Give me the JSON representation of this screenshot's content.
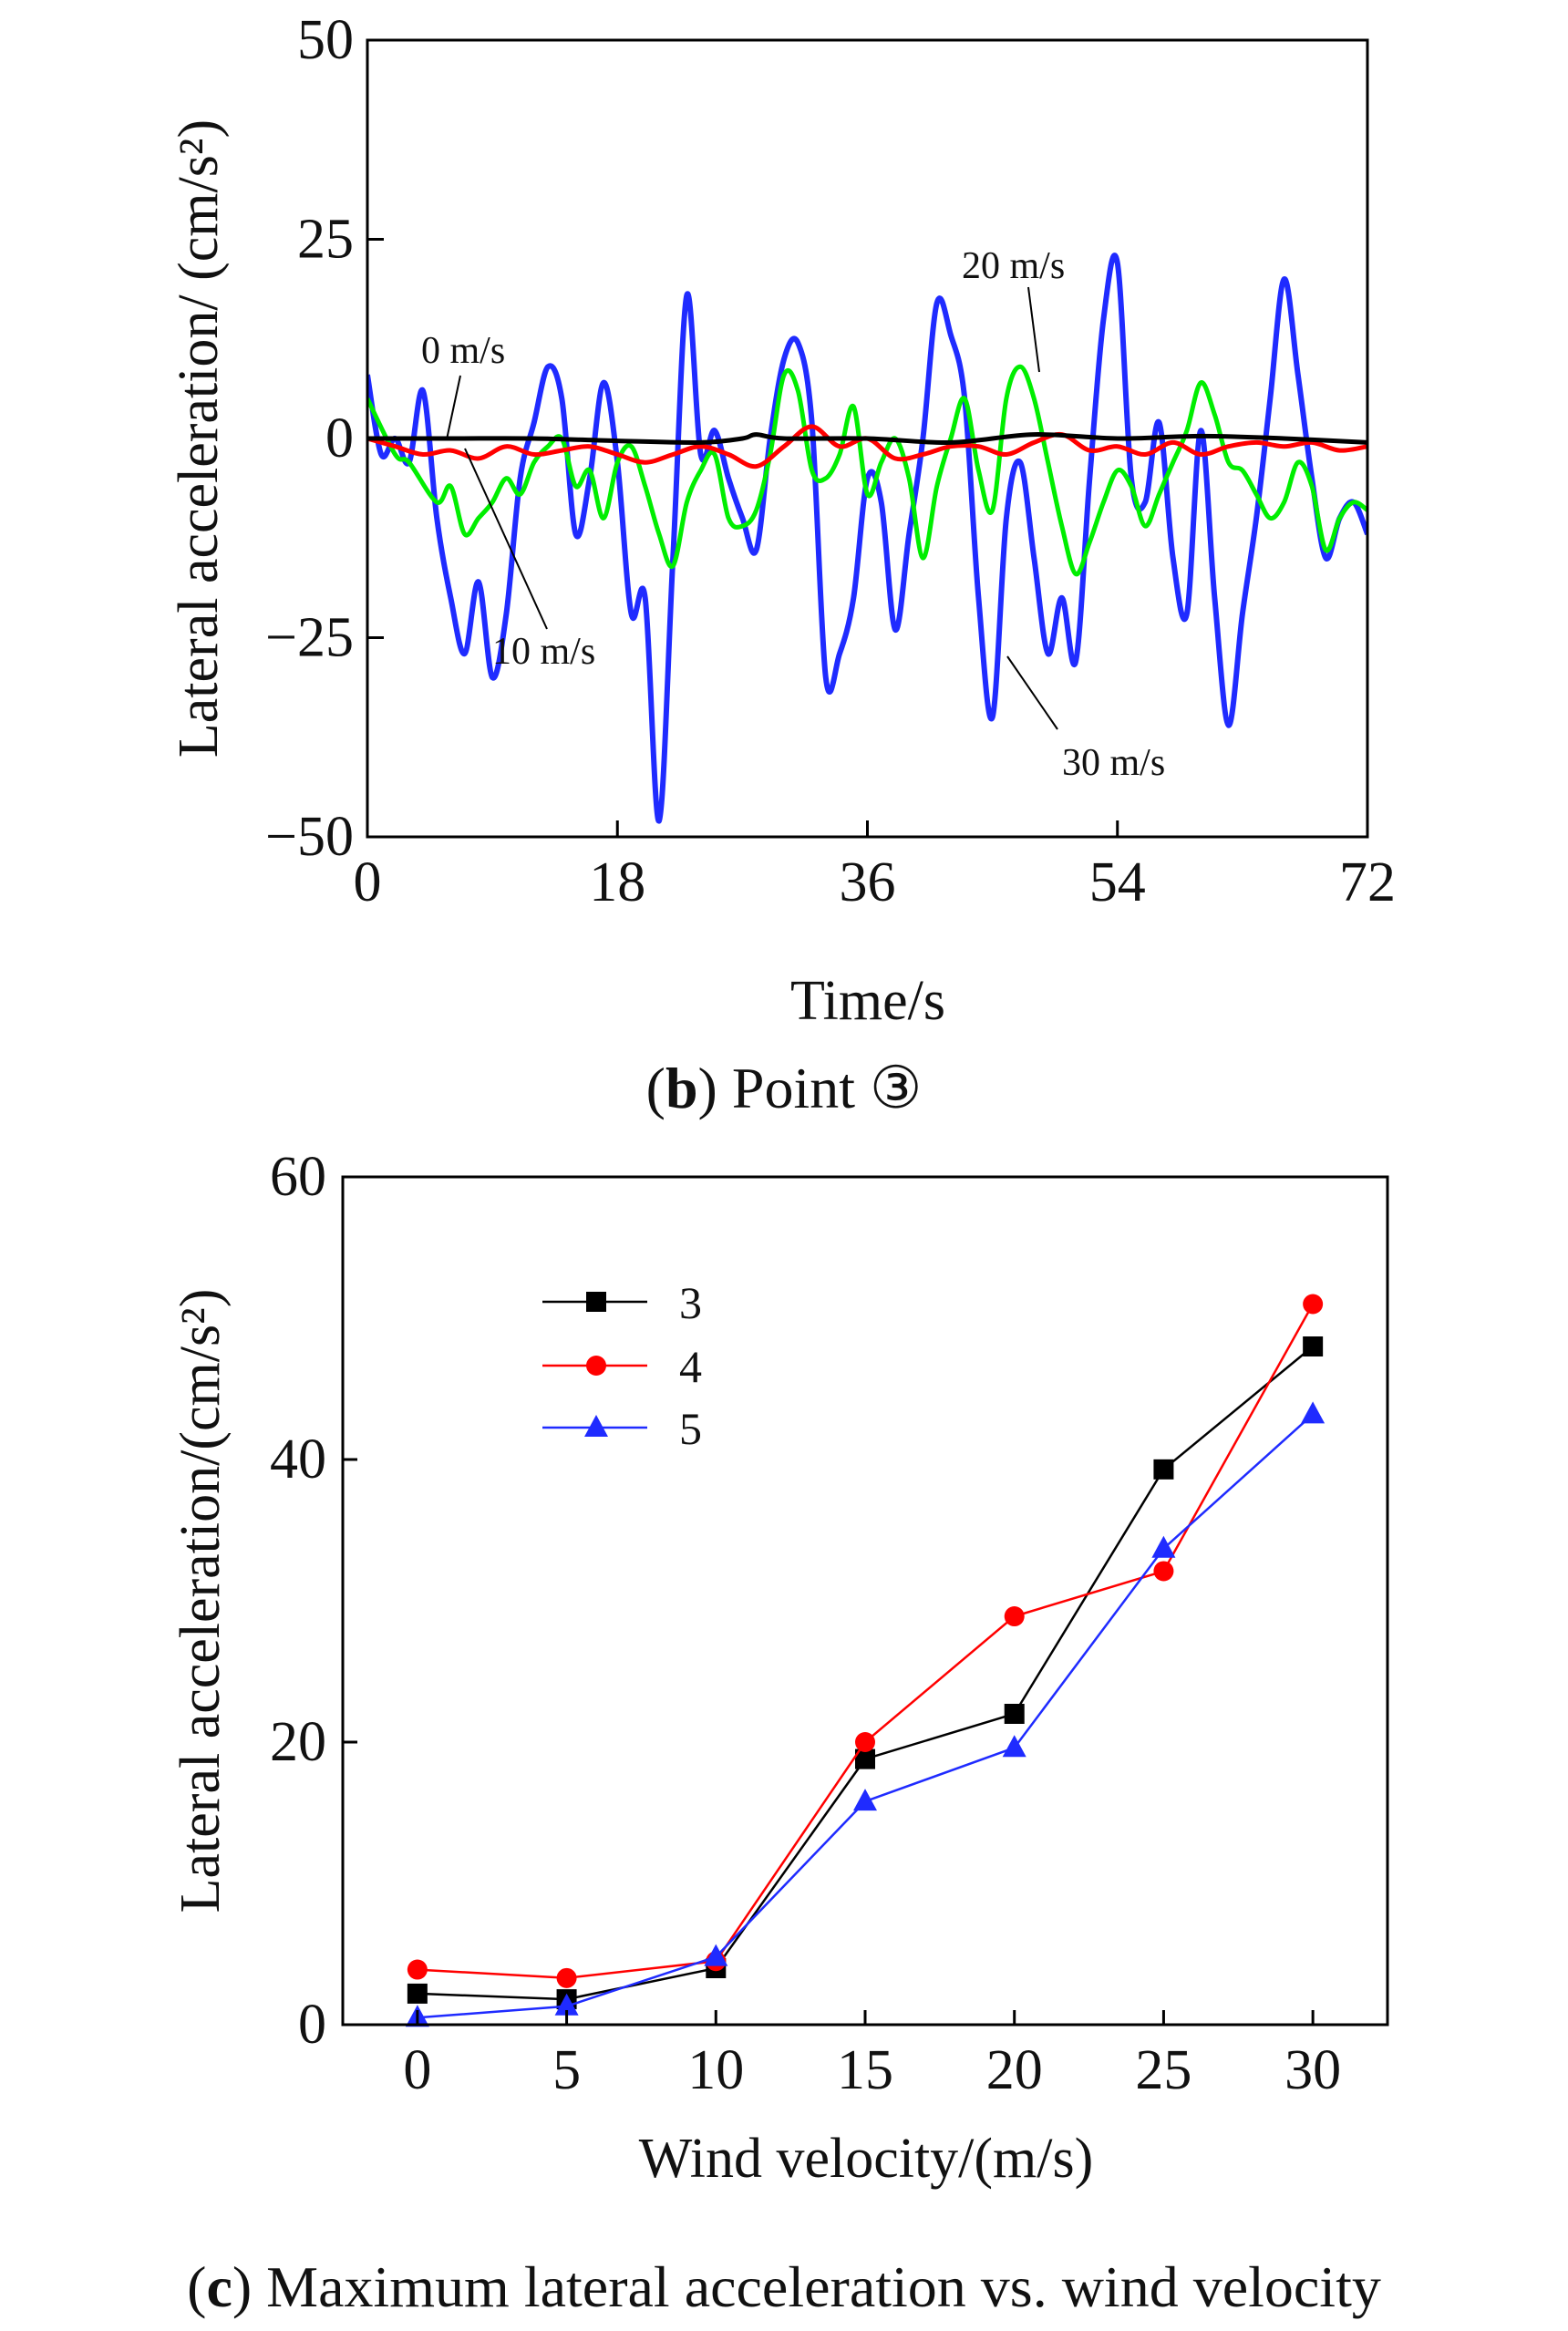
{
  "chart_data": [
    {
      "type": "line",
      "panel": "b",
      "caption_letter": "b",
      "caption_text": "Point ③",
      "xlabel": "Time/s",
      "ylabel": "Lateral acceleration/ (cm/s²)",
      "xlim": [
        0,
        72
      ],
      "ylim": [
        -50,
        50
      ],
      "xticks": [
        "0",
        "18",
        "36",
        "54",
        "72"
      ],
      "yticks": [
        "−50",
        "−25",
        "0",
        "25",
        "50"
      ],
      "xtick_values": [
        0,
        18,
        36,
        54,
        72
      ],
      "ytick_values": [
        -50,
        -25,
        0,
        25,
        50
      ],
      "series": [
        {
          "name": "0 m/s",
          "label": "0 m/s",
          "color": "#000000",
          "x": [
            0,
            6,
            12,
            18,
            24,
            27,
            28,
            30,
            36,
            42,
            48,
            54,
            60,
            66,
            72
          ],
          "y": [
            0,
            0,
            0,
            -0.3,
            -0.5,
            0,
            0.5,
            0,
            0,
            -0.5,
            0.5,
            0,
            0.3,
            0,
            -0.5
          ]
        },
        {
          "name": "10 m/s",
          "label": "10 m/s",
          "color": "#ff0000",
          "x": [
            0,
            2,
            4,
            6,
            8,
            10,
            12,
            14,
            16,
            18,
            20,
            22,
            24,
            26,
            28,
            30,
            32,
            34,
            36,
            38,
            40,
            42,
            44,
            46,
            48,
            50,
            52,
            54,
            56,
            58,
            60,
            62,
            64,
            66,
            68,
            70,
            72
          ],
          "y": [
            0,
            -1,
            -2,
            -1.5,
            -2.5,
            -1,
            -2,
            -1.5,
            -1,
            -2,
            -3,
            -2,
            -1,
            -2,
            -3.5,
            -1,
            1.5,
            -1,
            0,
            -2.5,
            -2,
            -1,
            -1,
            -2,
            -0.5,
            0.5,
            -1.5,
            -1,
            -2,
            -0.5,
            -2,
            -1,
            -0.5,
            -1,
            -0.5,
            -1.5,
            -1
          ]
        },
        {
          "name": "20 m/s",
          "label": "20 m/s",
          "color": "#00ee00",
          "x": [
            0,
            2,
            3,
            5,
            6,
            7,
            8,
            9,
            10,
            11,
            12,
            13,
            14,
            15,
            16,
            17,
            18,
            19,
            20,
            21,
            22,
            23,
            24,
            25,
            26,
            27,
            28,
            29,
            30,
            31,
            32,
            33,
            34,
            35,
            36,
            37,
            38,
            39,
            40,
            41,
            42,
            43,
            44,
            45,
            46,
            47,
            48,
            49,
            50,
            51,
            52,
            53,
            54,
            55,
            56,
            57,
            58,
            59,
            60,
            61,
            62,
            63,
            64,
            65,
            66,
            67,
            68,
            69,
            70,
            71,
            72
          ],
          "y": [
            5,
            -2,
            -3,
            -8,
            -6,
            -12,
            -10,
            -8,
            -5,
            -7,
            -3,
            -1,
            0,
            -6,
            -4,
            -10,
            -3,
            -1,
            -6,
            -12,
            -16,
            -8,
            -4,
            -2,
            -10,
            -11,
            -9,
            -2,
            8,
            6,
            -4,
            -5,
            -2,
            4,
            -7,
            -3,
            0,
            -5,
            -15,
            -6,
            0,
            5,
            -4,
            -9,
            5,
            9,
            5,
            -3,
            -11,
            -17,
            -13,
            -8,
            -4,
            -6,
            -11,
            -7,
            -3,
            1,
            7,
            3,
            -3,
            -4,
            -7,
            -10,
            -8,
            -3,
            -6,
            -14,
            -10,
            -8,
            -9
          ]
        },
        {
          "name": "30 m/s",
          "label": "30 m/s",
          "color": "#1f2bff",
          "x": [
            0,
            1,
            2,
            3,
            4,
            5,
            6,
            7,
            8,
            9,
            10,
            11,
            12,
            13,
            14,
            15,
            16,
            17,
            18,
            19,
            20,
            21,
            22,
            23,
            24,
            25,
            26,
            27,
            28,
            29,
            30,
            31,
            32,
            33,
            34,
            35,
            36,
            37,
            38,
            39,
            40,
            41,
            42,
            43,
            44,
            45,
            46,
            47,
            48,
            49,
            50,
            51,
            52,
            53,
            54,
            55,
            56,
            57,
            58,
            59,
            60,
            61,
            62,
            63,
            64,
            65,
            66,
            67,
            68,
            69,
            70,
            71,
            72
          ],
          "y": [
            8,
            -2,
            0,
            -3,
            6,
            -10,
            -20,
            -27,
            -18,
            -30,
            -22,
            -5,
            2,
            9,
            5,
            -12,
            -5,
            7,
            -3,
            -22,
            -20,
            -48,
            -15,
            18,
            -2,
            1,
            -5,
            -10,
            -14,
            0,
            10,
            12,
            2,
            -30,
            -27,
            -20,
            -5,
            -8,
            -24,
            -12,
            0,
            17,
            13,
            5,
            -20,
            -35,
            -10,
            -3,
            -15,
            -27,
            -20,
            -28,
            -5,
            15,
            22,
            -5,
            -8,
            2,
            -15,
            -22,
            1,
            -20,
            -36,
            -22,
            -10,
            5,
            20,
            8,
            -5,
            -15,
            -10,
            -8,
            -12
          ]
        }
      ],
      "annotations": [
        {
          "text": "0 m/s",
          "series": "0 m/s"
        },
        {
          "text": "10 m/s",
          "series": "10 m/s"
        },
        {
          "text": "20 m/s",
          "series": "20 m/s"
        },
        {
          "text": "30 m/s",
          "series": "30 m/s"
        }
      ],
      "grid": false
    },
    {
      "type": "line",
      "panel": "c",
      "caption_letter": "c",
      "caption_text": "Maximum lateral acceleration vs. wind velocity",
      "xlabel": "Wind velocity/(m/s)",
      "ylabel": "Lateral acceleration/(cm/s²)",
      "x": [
        0,
        5,
        10,
        15,
        20,
        25,
        30
      ],
      "xlim": [
        -2.5,
        32.5
      ],
      "ylim": [
        0,
        60
      ],
      "xticks": [
        "0",
        "5",
        "10",
        "15",
        "20",
        "25",
        "30"
      ],
      "yticks": [
        "0",
        "20",
        "40",
        "60"
      ],
      "xtick_values": [
        0,
        5,
        10,
        15,
        20,
        25,
        30
      ],
      "ytick_values": [
        0,
        20,
        40,
        60
      ],
      "legend_position": "top-left",
      "series": [
        {
          "name": "3",
          "color": "#000000",
          "marker": "square",
          "values": [
            2.2,
            1.8,
            4.0,
            18.8,
            22.0,
            39.3,
            48.0
          ]
        },
        {
          "name": "4",
          "color": "#ff0000",
          "marker": "circle",
          "values": [
            3.9,
            3.3,
            4.5,
            20.0,
            28.9,
            32.1,
            51.0
          ]
        },
        {
          "name": "5",
          "color": "#1f2bff",
          "marker": "triangle",
          "values": [
            0.5,
            1.3,
            4.8,
            15.8,
            19.6,
            33.7,
            43.2
          ]
        }
      ],
      "grid": false
    }
  ]
}
